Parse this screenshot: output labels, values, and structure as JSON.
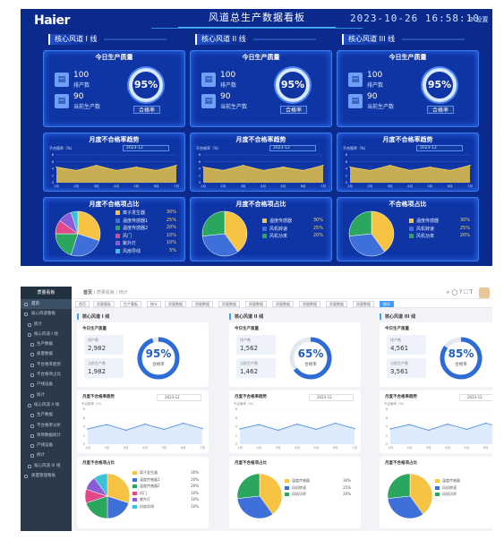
{
  "dashboard": {
    "logo": "Haier",
    "title": "风道总生产数据看板",
    "datetime": "2023-10-26 16:58:10",
    "settings_label": "设置",
    "lanes": [
      {
        "title": "核心风道 I 线",
        "quality_title": "今日生产质量",
        "produced_value": "100",
        "produced_label": "排产数",
        "current_value": "90",
        "current_label": "当前生产数",
        "rate": "95%",
        "rate_label": "合格率",
        "trend_title": "月度不合格率趋势",
        "trend_select": "2023-12",
        "trend_unit": "不合格率（%）",
        "pie_title": "月度不合格项占比",
        "legend": [
          {
            "name": "离子发生器",
            "pct": "30%",
            "color": "#f6c343"
          },
          {
            "name": "温度传感器1",
            "pct": "25%",
            "color": "#3f6fd8"
          },
          {
            "name": "温度传感器2",
            "pct": "20%",
            "color": "#2aa65f"
          },
          {
            "name": "风门",
            "pct": "10%",
            "color": "#e04a8a"
          },
          {
            "name": "紫外灯",
            "pct": "10%",
            "color": "#8a5cd6"
          },
          {
            "name": "风扇导线",
            "pct": "5%",
            "color": "#39c2d7"
          }
        ]
      },
      {
        "title": "核心风道 II 线",
        "quality_title": "今日生产质量",
        "produced_value": "100",
        "produced_label": "排产数",
        "current_value": "90",
        "current_label": "当前生产数",
        "rate": "95%",
        "rate_label": "合格率",
        "trend_title": "月度不合格率趋势",
        "trend_select": "2023-12",
        "trend_unit": "不合格率（%）",
        "pie_title": "月度不合格项占比",
        "legend": [
          {
            "name": "温度传感器",
            "pct": "30%",
            "color": "#f6c343"
          },
          {
            "name": "风机转速",
            "pct": "25%",
            "color": "#3f6fd8"
          },
          {
            "name": "风机功率",
            "pct": "20%",
            "color": "#2aa65f"
          }
        ]
      },
      {
        "title": "核心风道 III 线",
        "quality_title": "今日生产质量",
        "produced_value": "100",
        "produced_label": "排产数",
        "current_value": "90",
        "current_label": "当前生产数",
        "rate": "95%",
        "rate_label": "合格率",
        "trend_title": "月度不合格率趋势",
        "trend_select": "2023-12",
        "trend_unit": "不合格率（%）",
        "pie_title": "不合格项占比",
        "legend": [
          {
            "name": "温度传感器",
            "pct": "30%",
            "color": "#f6c343"
          },
          {
            "name": "风机转速",
            "pct": "25%",
            "color": "#3f6fd8"
          },
          {
            "name": "风机功率",
            "pct": "20%",
            "color": "#2aa65f"
          }
        ]
      }
    ]
  },
  "admin": {
    "brand": "质量看板",
    "sidebar": [
      {
        "label": "首页",
        "level": 0,
        "active": true
      },
      {
        "label": "核心风道看板",
        "level": 0
      },
      {
        "label": "统计",
        "level": 1
      },
      {
        "label": "核心风道 I 线",
        "level": 1
      },
      {
        "label": "生产数据",
        "level": 2
      },
      {
        "label": "质量数据",
        "level": 2
      },
      {
        "label": "不合格率趋势",
        "level": 2
      },
      {
        "label": "不合格项占比",
        "level": 2
      },
      {
        "label": "产线设备",
        "level": 2
      },
      {
        "label": "统计",
        "level": 2
      },
      {
        "label": "核心风道 II 线",
        "level": 1
      },
      {
        "label": "生产数据",
        "level": 2
      },
      {
        "label": "不合格率分析",
        "level": 2
      },
      {
        "label": "项目数据统计",
        "level": 2
      },
      {
        "label": "产线设备",
        "level": 2
      },
      {
        "label": "统计",
        "level": 2
      },
      {
        "label": "核心风道 III 线",
        "level": 1
      },
      {
        "label": "质量管理看板",
        "level": 0
      }
    ],
    "breadcrumb": {
      "root": "首页",
      "path": "/ 质量看板 / 统计"
    },
    "tabs": [
      "首页",
      "质量看板",
      "生产看板",
      "统计",
      "质量数据",
      "质量数据",
      "质量数据",
      "质量数据",
      "质量数据",
      "质量数据",
      "质量数据",
      "质量数据",
      "统计"
    ],
    "columns": [
      {
        "title": "核心风道 I 线",
        "quality_title": "今日生产质量",
        "box1_label": "排产数",
        "box1_value": "2,982",
        "box2_label": "当前生产数",
        "box2_value": "1,982",
        "rate": "95%",
        "rate_value": 0.95,
        "rate_label": "合格率",
        "trend_title": "月度不合格率趋势",
        "trend_select": "2023-12",
        "trend_unit": "不合格率（%）",
        "pie_title": "月度不合格项占比",
        "legend": [
          {
            "name": "离子发生器",
            "pct": "30%",
            "color": "#f6c343"
          },
          {
            "name": "温度传感器1",
            "pct": "20%",
            "color": "#3f6fd8"
          },
          {
            "name": "温度传感器2",
            "pct": "20%",
            "color": "#2aa65f"
          },
          {
            "name": "风门",
            "pct": "10%",
            "color": "#e04a8a"
          },
          {
            "name": "紫外灯",
            "pct": "10%",
            "color": "#8a5cd6"
          },
          {
            "name": "风扇导线",
            "pct": "10%",
            "color": "#39c2d7"
          }
        ]
      },
      {
        "title": "核心风道 II 线",
        "quality_title": "今日生产质量",
        "box1_label": "排产数",
        "box1_value": "1,562",
        "box2_label": "当前生产数",
        "box2_value": "1,462",
        "rate": "65%",
        "rate_value": 0.65,
        "rate_label": "合格率",
        "trend_title": "月度不合格率趋势",
        "trend_select": "2023-12",
        "trend_unit": "不合格率（%）",
        "pie_title": "月度不合格项占比",
        "legend": [
          {
            "name": "温度传感器",
            "pct": "30%",
            "color": "#f6c343"
          },
          {
            "name": "风机转速",
            "pct": "25%",
            "color": "#3f6fd8"
          },
          {
            "name": "风机功率",
            "pct": "20%",
            "color": "#2aa65f"
          }
        ]
      },
      {
        "title": "核心风道 III 线",
        "quality_title": "今日生产质量",
        "box1_label": "排产数",
        "box1_value": "4,561",
        "box2_label": "当前生产数",
        "box2_value": "3,561",
        "rate": "85%",
        "rate_value": 0.85,
        "rate_label": "合格率",
        "trend_title": "月度不合格率趋势",
        "trend_select": "2023-12",
        "trend_unit": "不合格率（%）",
        "pie_title": "月度不合格项占比",
        "legend": [
          {
            "name": "温度传感器",
            "pct": "30%",
            "color": "#f6c343"
          },
          {
            "name": "风机转速",
            "pct": "25%",
            "color": "#3f6fd8"
          },
          {
            "name": "风机功率",
            "pct": "20%",
            "color": "#2aa65f"
          }
        ]
      }
    ]
  },
  "chart_data": [
    {
      "type": "area",
      "title": "月度不合格率趋势",
      "ylabel": "不合格率（%）",
      "x": [
        "1月",
        "2月",
        "3月",
        "4月",
        "5月",
        "6月",
        "7月"
      ],
      "ylim": [
        0,
        8
      ],
      "yticks": [
        0,
        2,
        4,
        6,
        8
      ],
      "series": [
        {
          "values": [
            4.5,
            3.5,
            5.0,
            3.5,
            4.5,
            3.5,
            5.0
          ]
        }
      ]
    },
    {
      "type": "line",
      "title": "月度不合格率趋势",
      "ylabel": "不合格率（%）",
      "x": [
        "1月",
        "2月",
        "3月",
        "4月",
        "5月",
        "6月",
        "7月"
      ],
      "ylim": [
        0,
        8
      ],
      "yticks": [
        0,
        2,
        4,
        6,
        8
      ],
      "series": [
        {
          "values": [
            3.5,
            4.5,
            3.2,
            4.6,
            3.4,
            4.8,
            3.6
          ]
        }
      ]
    },
    {
      "type": "pie",
      "title": "月度不合格项占比",
      "categories": [
        "离子发生器",
        "温度传感器1",
        "温度传感器2",
        "风门",
        "紫外灯",
        "风扇导线"
      ],
      "values": [
        30,
        20,
        20,
        10,
        10,
        10
      ]
    },
    {
      "type": "pie",
      "title": "月度不合格项占比",
      "categories": [
        "温度传感器",
        "风机转速",
        "风机功率"
      ],
      "values": [
        30,
        25,
        20
      ]
    }
  ]
}
